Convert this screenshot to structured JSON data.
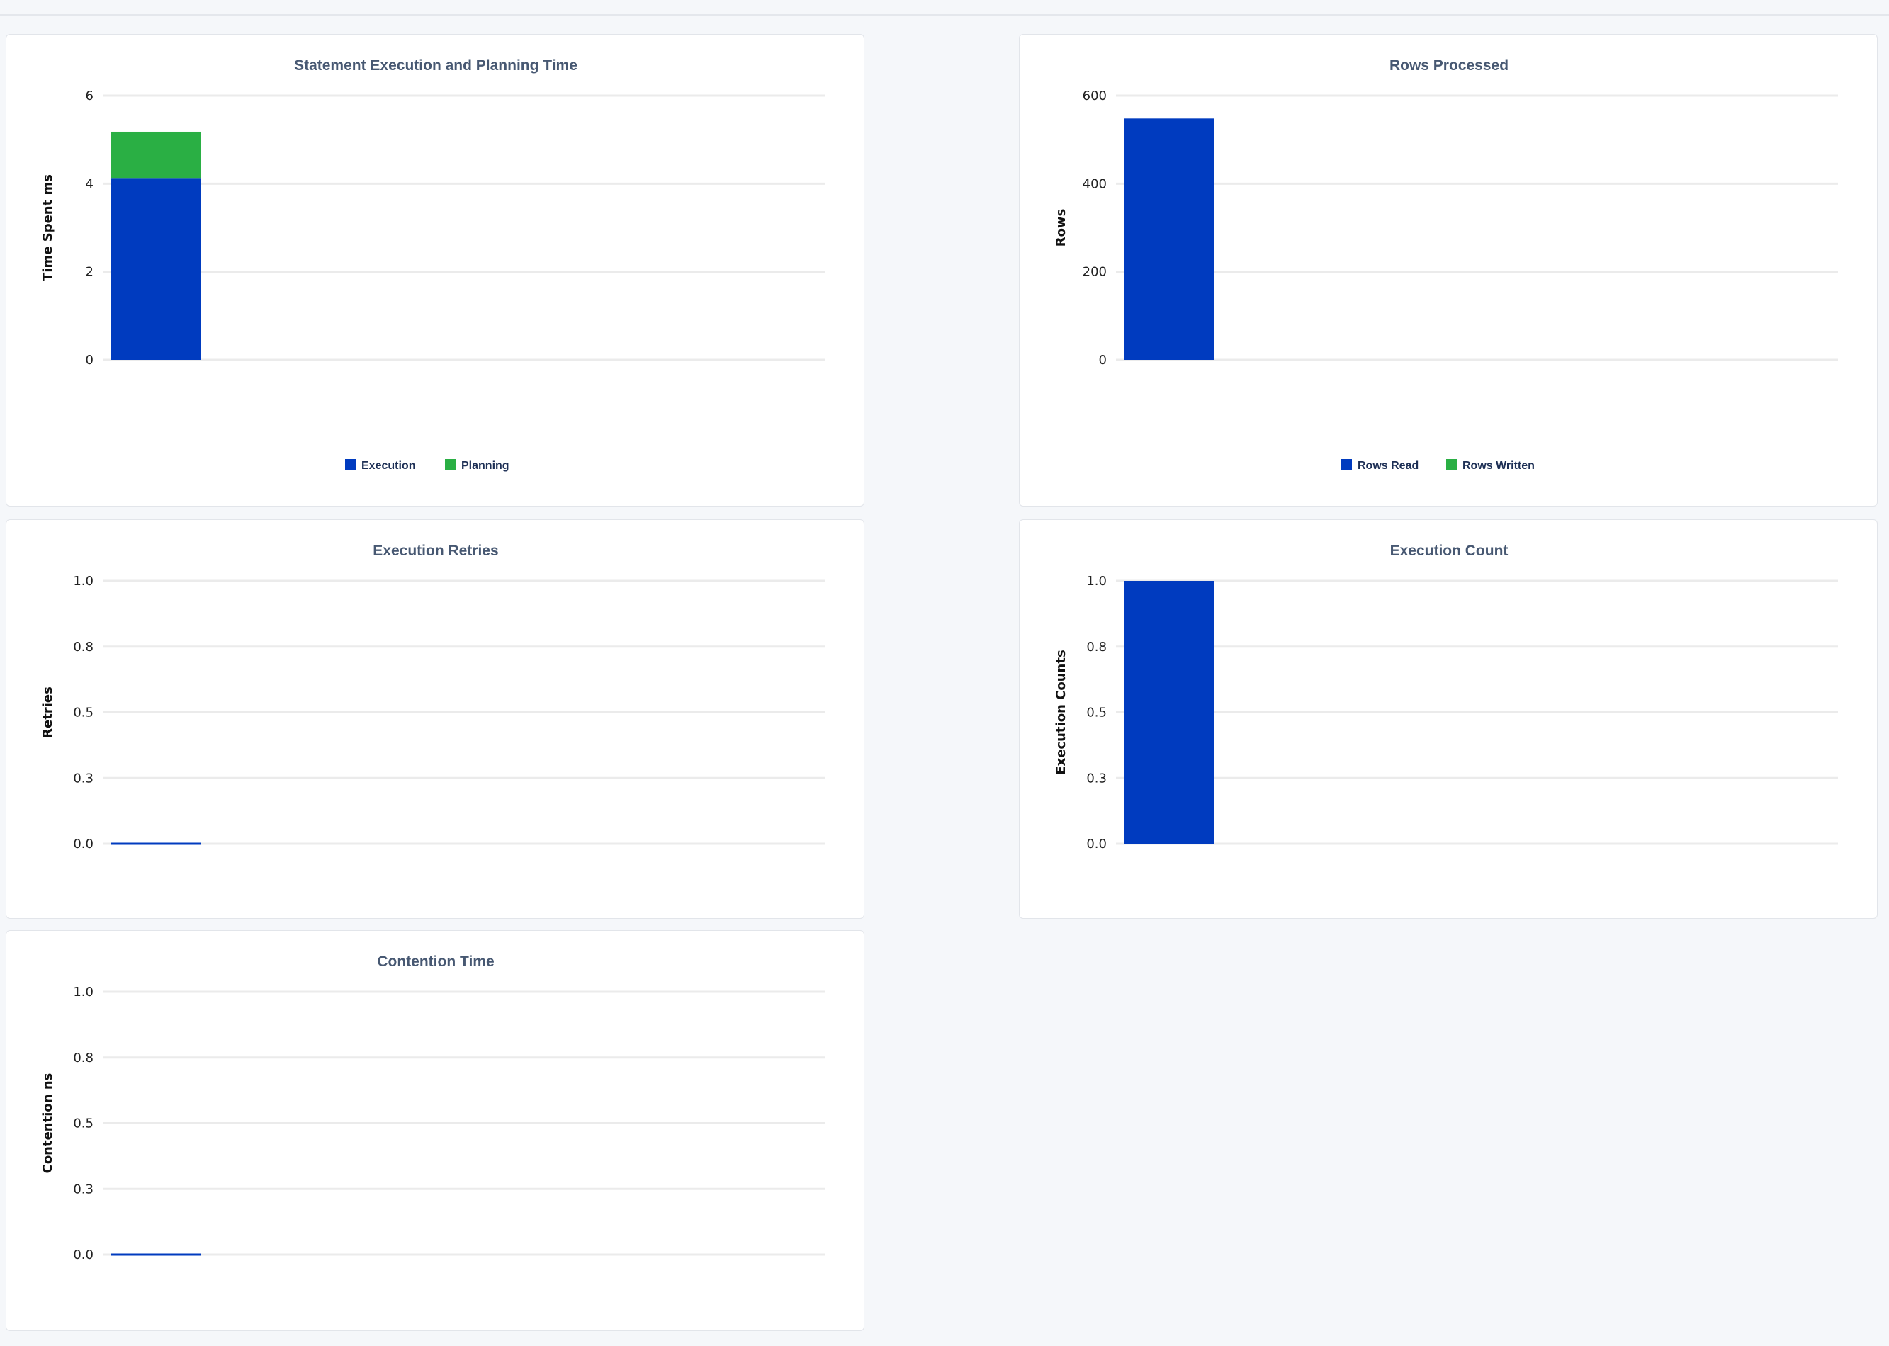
{
  "colors": {
    "primary": "#003bbf",
    "secondary": "#2aaf44",
    "grid": "#ebebeb",
    "title": "#475872"
  },
  "chart_data": [
    {
      "type": "bar",
      "stacked": true,
      "title": "Statement Execution and Planning Time",
      "ylabel": "Time Spent ms",
      "xlabel": "",
      "ylim": [
        0,
        6
      ],
      "yticks": [
        0,
        2,
        4,
        6
      ],
      "ytick_labels": [
        "0",
        "2",
        "4",
        "6"
      ],
      "grid": true,
      "legend": "bottom",
      "series": [
        {
          "name": "Execution",
          "values": [
            4.13
          ],
          "color": "#003bbf"
        },
        {
          "name": "Planning",
          "values": [
            1.05
          ],
          "color": "#2aaf44"
        }
      ]
    },
    {
      "type": "bar",
      "stacked": true,
      "title": "Rows Processed",
      "ylabel": "Rows",
      "xlabel": "",
      "ylim": [
        0,
        600
      ],
      "yticks": [
        0,
        200,
        400,
        600
      ],
      "ytick_labels": [
        "0",
        "200",
        "400",
        "600"
      ],
      "grid": true,
      "legend": "bottom",
      "series": [
        {
          "name": "Rows Read",
          "values": [
            548
          ],
          "color": "#003bbf"
        },
        {
          "name": "Rows Written",
          "values": [
            0
          ],
          "color": "#2aaf44"
        }
      ]
    },
    {
      "type": "bar",
      "title": "Execution Retries",
      "ylabel": "Retries",
      "xlabel": "",
      "ylim": [
        0,
        1
      ],
      "yticks": [
        0,
        0.25,
        0.5,
        0.75,
        1
      ],
      "ytick_labels": [
        "0.0",
        "0.3",
        "0.5",
        "0.8",
        "1.0"
      ],
      "grid": true,
      "series": [
        {
          "values": [
            0
          ],
          "color": "#003bbf"
        }
      ]
    },
    {
      "type": "bar",
      "title": "Execution Count",
      "ylabel": "Execution Counts",
      "xlabel": "",
      "ylim": [
        0,
        1
      ],
      "yticks": [
        0,
        0.25,
        0.5,
        0.75,
        1
      ],
      "ytick_labels": [
        "0.0",
        "0.3",
        "0.5",
        "0.8",
        "1.0"
      ],
      "grid": true,
      "series": [
        {
          "values": [
            1
          ],
          "color": "#003bbf"
        }
      ]
    },
    {
      "type": "bar",
      "title": "Contention Time",
      "ylabel": "Contention ns",
      "xlabel": "",
      "ylim": [
        0,
        1
      ],
      "yticks": [
        0,
        0.25,
        0.5,
        0.75,
        1
      ],
      "ytick_labels": [
        "0.0",
        "0.3",
        "0.5",
        "0.8",
        "1.0"
      ],
      "grid": true,
      "series": [
        {
          "values": [
            0
          ],
          "color": "#003bbf"
        }
      ]
    }
  ]
}
